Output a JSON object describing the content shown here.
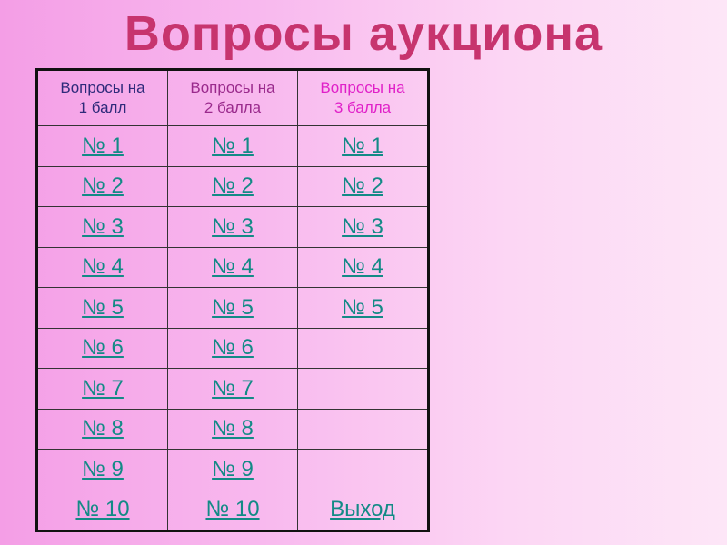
{
  "title": "Вопросы аукциона",
  "headers": [
    "Вопросы на\n1 балл",
    "Вопросы на\n2 балла",
    "Вопросы на\n3 балла"
  ],
  "header_colors": [
    "#2e2a7a",
    "#9a2a8c",
    "#e020c8"
  ],
  "link_color": "#138a86",
  "rows": [
    [
      "№ 1",
      "№ 1",
      "№ 1"
    ],
    [
      "№ 2",
      "№ 2",
      "№ 2"
    ],
    [
      "№ 3",
      "№ 3",
      "№ 3"
    ],
    [
      "№ 4",
      "№ 4",
      "№ 4"
    ],
    [
      "№ 5",
      "№ 5",
      "№ 5"
    ],
    [
      "№ 6",
      "№ 6",
      ""
    ],
    [
      "№ 7",
      "№ 7",
      ""
    ],
    [
      "№ 8",
      "№ 8",
      ""
    ],
    [
      "№ 9",
      "№ 9",
      ""
    ],
    [
      "№ 10",
      "№ 10",
      "Выход"
    ]
  ]
}
